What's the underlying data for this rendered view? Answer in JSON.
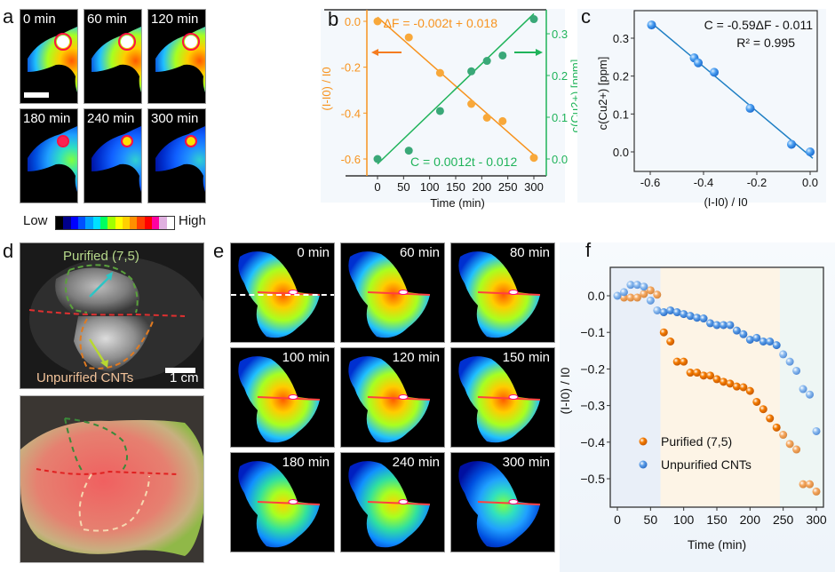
{
  "panels": {
    "a": {
      "letter": "a",
      "tiles": [
        "0 min",
        "60 min",
        "120 min",
        "180 min",
        "240 min",
        "300 min"
      ],
      "tile_intensity": [
        1.0,
        0.95,
        0.85,
        0.6,
        0.45,
        0.35
      ],
      "scale_bar": "scale-bar",
      "colorbar": {
        "low_label": "Low",
        "high_label": "High",
        "colors": [
          "#000000",
          "#00008b",
          "#0000ff",
          "#0050ff",
          "#00a0ff",
          "#00e0ff",
          "#00ff60",
          "#a0ff00",
          "#ffff00",
          "#ffd000",
          "#ff9000",
          "#ff4000",
          "#ff0000",
          "#ff00a0",
          "#e0b0e0",
          "#ffffff"
        ]
      }
    },
    "d": {
      "letter": "d",
      "label_purified": "Purified (7,5)",
      "label_unpurified": "Unpurified CNTs",
      "scale_label": "1 cm"
    },
    "e": {
      "letter": "e",
      "tiles": [
        "0 min",
        "60 min",
        "80 min",
        "100 min",
        "120 min",
        "150 min",
        "180 min",
        "240 min",
        "300 min"
      ],
      "tile_intensity": [
        1.0,
        1.0,
        0.97,
        0.95,
        0.9,
        0.85,
        0.8,
        0.75,
        0.55
      ]
    }
  },
  "colors": {
    "orange": "#f7931e",
    "green": "#1fb35a",
    "blue_fit": "#1f7fc4",
    "blue_pt": "#3a8fe6",
    "f_orange": "#f57c00",
    "f_orange_light": "#f5a860",
    "f_blue": "#5c9ee8",
    "f_blue_light": "#8fbdf0",
    "shade_blue": "#e9eff8",
    "shade_orange": "#fdf4e6",
    "shade_teal": "#eef6f4"
  },
  "chart_data": [
    {
      "id": "b",
      "letter": "b",
      "type": "scatter",
      "xlabel": "Time (min)",
      "ylabel_left": "(I-I0) / I0",
      "ylabel_right": "c(Cu2+) [ppm]",
      "xlim": [
        -20,
        320
      ],
      "xticks": [
        0,
        50,
        100,
        150,
        200,
        250,
        300
      ],
      "ylim_left": [
        -0.65,
        0.03
      ],
      "yticks_left": [
        "0.0",
        "-0.2",
        "-0.4",
        "-0.6"
      ],
      "ylim_right": [
        -0.02,
        0.35
      ],
      "yticks_right": [
        "0.0",
        "0.1",
        "0.2",
        "0.3"
      ],
      "series": [
        {
          "name": "Delta F",
          "axis": "left",
          "color": "orange",
          "x": [
            0,
            60,
            120,
            180,
            210,
            240,
            300
          ],
          "y": [
            0.0,
            -0.07,
            -0.225,
            -0.36,
            -0.42,
            -0.435,
            -0.595
          ],
          "fit": {
            "slope": -0.002,
            "intercept": 0.018,
            "label": "ΔF = -0.002t + 0.018"
          }
        },
        {
          "name": "C",
          "axis": "right",
          "color": "green",
          "x": [
            0,
            60,
            120,
            180,
            210,
            240,
            300
          ],
          "y": [
            0.0,
            0.02,
            0.115,
            0.21,
            0.235,
            0.248,
            0.335
          ],
          "fit": {
            "slope": 0.0012,
            "intercept": -0.012,
            "label": "C = 0.0012t - 0.012"
          }
        }
      ]
    },
    {
      "id": "c",
      "letter": "c",
      "type": "scatter",
      "xlabel": "(I-I0) / I0",
      "ylabel": "c(Cu2+) [ppm]",
      "xlim": [
        -0.66,
        0.04
      ],
      "xticks": [
        "-0.6",
        "-0.4",
        "-0.2",
        "0.0"
      ],
      "xtick_values": [
        -0.6,
        -0.4,
        -0.2,
        0.0
      ],
      "ylim": [
        -0.05,
        0.36
      ],
      "yticks": [
        "0.0",
        "0.1",
        "0.2",
        "0.3"
      ],
      "ytick_values": [
        0.0,
        0.1,
        0.2,
        0.3
      ],
      "x": [
        -0.595,
        -0.435,
        -0.42,
        -0.36,
        -0.225,
        -0.07,
        0.0
      ],
      "y": [
        0.335,
        0.248,
        0.235,
        0.21,
        0.115,
        0.02,
        0.0
      ],
      "fit": {
        "slope": -0.59,
        "intercept": -0.011,
        "label": "C = -0.59ΔF - 0.011",
        "r2_label": "R² = 0.995"
      }
    },
    {
      "id": "f",
      "letter": "f",
      "type": "scatter",
      "xlabel": "Time (min)",
      "ylabel": "(I-I0) / I0",
      "xlim": [
        -10,
        310
      ],
      "xticks": [
        0,
        50,
        100,
        150,
        200,
        250,
        300
      ],
      "ylim": [
        -0.575,
        0.075
      ],
      "yticks": [
        "0.0",
        "−0.1",
        "−0.2",
        "−0.3",
        "−0.4",
        "−0.5"
      ],
      "ytick_values": [
        0.0,
        -0.1,
        -0.2,
        -0.3,
        -0.4,
        -0.5
      ],
      "regions": [
        {
          "from": -10,
          "to": 65,
          "color": "shade_blue"
        },
        {
          "from": 65,
          "to": 245,
          "color": "shade_orange"
        },
        {
          "from": 245,
          "to": 310,
          "color": "shade_teal"
        }
      ],
      "legend": {
        "position": "bottom-left",
        "entries": [
          "Purified (7,5)",
          "Unpurified CNTs"
        ]
      },
      "series": [
        {
          "name": "Purified (7,5)",
          "x": [
            10,
            20,
            30,
            40,
            50,
            60,
            70,
            80,
            90,
            100,
            110,
            120,
            130,
            140,
            150,
            160,
            170,
            180,
            190,
            200,
            210,
            220,
            230,
            240,
            250,
            260,
            270,
            280,
            290,
            300
          ],
          "y": [
            -0.005,
            -0.005,
            -0.005,
            0.005,
            0.015,
            0.003,
            -0.1,
            -0.125,
            -0.18,
            -0.18,
            -0.21,
            -0.21,
            -0.218,
            -0.218,
            -0.228,
            -0.235,
            -0.24,
            -0.248,
            -0.25,
            -0.26,
            -0.29,
            -0.31,
            -0.335,
            -0.36,
            -0.38,
            -0.405,
            -0.42,
            -0.515,
            -0.515,
            -0.535
          ]
        },
        {
          "name": "Unpurified CNTs",
          "x": [
            0,
            10,
            20,
            30,
            40,
            50,
            60,
            70,
            80,
            90,
            100,
            110,
            120,
            130,
            140,
            150,
            160,
            170,
            180,
            190,
            200,
            210,
            220,
            230,
            240,
            250,
            260,
            270,
            280,
            290,
            300
          ],
          "y": [
            0.0,
            0.01,
            0.03,
            0.03,
            0.025,
            -0.013,
            -0.04,
            -0.045,
            -0.04,
            -0.045,
            -0.05,
            -0.055,
            -0.06,
            -0.062,
            -0.075,
            -0.08,
            -0.08,
            -0.08,
            -0.095,
            -0.105,
            -0.12,
            -0.115,
            -0.125,
            -0.125,
            -0.135,
            -0.16,
            -0.18,
            -0.205,
            -0.255,
            -0.27,
            -0.37
          ]
        }
      ]
    }
  ]
}
